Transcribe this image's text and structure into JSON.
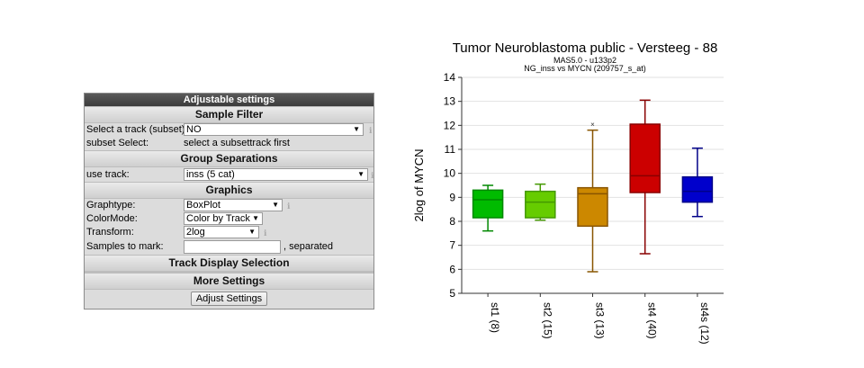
{
  "panel": {
    "title": "Adjustable settings",
    "sample_filter": {
      "header": "Sample Filter",
      "track_label": "Select a track (subset)",
      "track_value": "NO",
      "subset_label": "subset Select:",
      "subset_value": "select a subsettrack first"
    },
    "group_separations": {
      "header": "Group Separations",
      "use_track_label": "use track:",
      "use_track_value": "inss (5 cat)"
    },
    "graphics": {
      "header": "Graphics",
      "graphtype_label": "Graphtype:",
      "graphtype_value": "BoxPlot",
      "colormode_label": "ColorMode:",
      "colormode_value": "Color by Track",
      "transform_label": "Transform:",
      "transform_value": "2log",
      "samples_label": "Samples to mark:",
      "samples_value": "",
      "samples_hint": ", separated"
    },
    "track_display": {
      "header": "Track Display Selection"
    },
    "more_settings": {
      "header": "More Settings",
      "button": "Adjust Settings"
    }
  },
  "chart_data": {
    "type": "box",
    "title": "Tumor Neuroblastoma public - Versteeg - 88",
    "subtitle1": "MAS5.0 - u133p2",
    "subtitle2": "NG_inss vs MYCN (209757_s_at)",
    "ylabel": "2log of MYCN",
    "ylim": [
      5,
      14
    ],
    "yticks": [
      5,
      6,
      7,
      8,
      9,
      10,
      11,
      12,
      13,
      14
    ],
    "grid": true,
    "categories": [
      "st1 (8)",
      "st2 (15)",
      "st3 (13)",
      "st4 (40)",
      "st4s (12)"
    ],
    "boxes": [
      {
        "min": 7.6,
        "q1": 8.15,
        "median": 8.9,
        "q3": 9.3,
        "max": 9.5,
        "color": "#00bb00",
        "edge": "#008800"
      },
      {
        "min": 8.05,
        "q1": 8.15,
        "median": 8.8,
        "q3": 9.25,
        "max": 9.55,
        "color": "#66cc00",
        "edge": "#449900"
      },
      {
        "min": 5.9,
        "q1": 7.8,
        "median": 9.15,
        "q3": 9.4,
        "max": 11.8,
        "color": "#cc8800",
        "edge": "#885500",
        "outliers": [
          12.05
        ]
      },
      {
        "min": 6.65,
        "q1": 9.2,
        "median": 9.9,
        "q3": 12.05,
        "max": 13.05,
        "color": "#cc0000",
        "edge": "#880000"
      },
      {
        "min": 8.2,
        "q1": 8.8,
        "median": 9.25,
        "q3": 9.85,
        "max": 11.05,
        "color": "#0000cc",
        "edge": "#000088"
      }
    ]
  }
}
